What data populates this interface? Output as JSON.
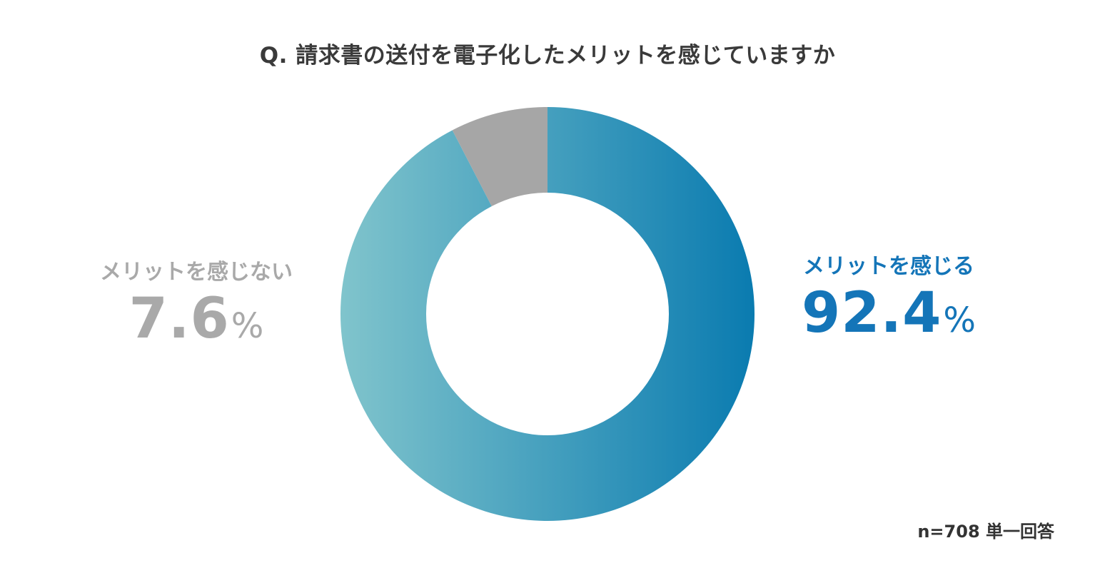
{
  "chart_data": {
    "type": "pie",
    "title": "Q. 請求書の送付を電子化したメリットを感じていますか",
    "note": "n=708 単一回答",
    "slices": [
      {
        "label": "メリットを感じる",
        "value": 92.4,
        "value_text": "92.4",
        "unit": "%",
        "color_start": "#0a7bb0",
        "color_end": "#80c4cc",
        "label_color": "#1475b8"
      },
      {
        "label": "メリットを感じない",
        "value": 7.6,
        "value_text": "7.6",
        "unit": "%",
        "color": "#a6a6a6",
        "label_color": "#a9a9a9"
      }
    ],
    "start_angle": "12 o'clock, clockwise",
    "legend": "none (direct labels left and right)"
  }
}
